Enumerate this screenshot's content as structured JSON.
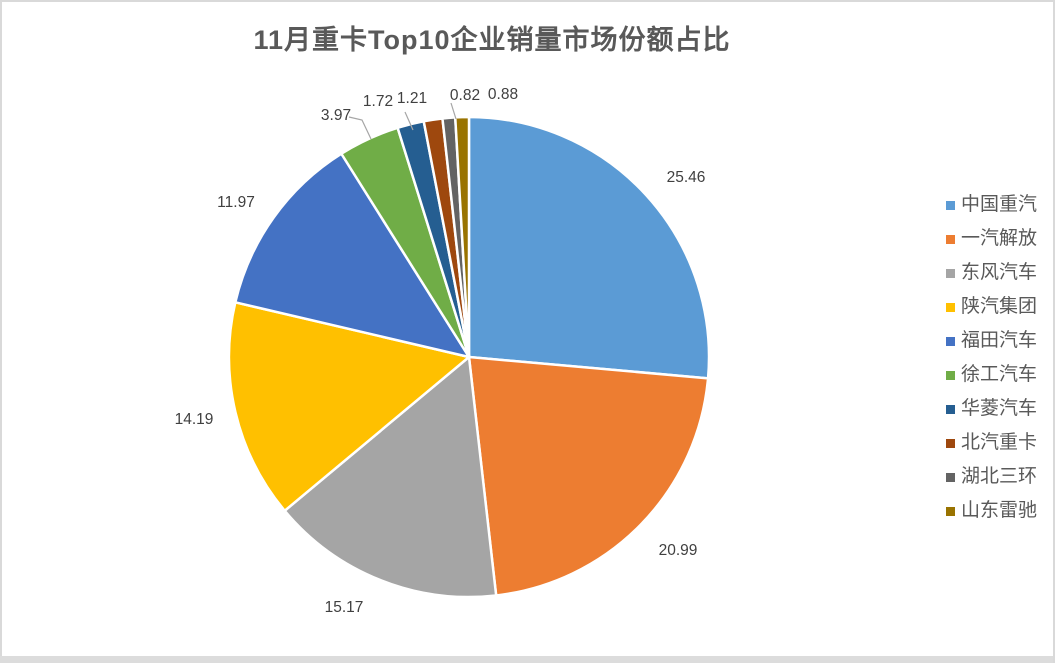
{
  "chart_data": {
    "type": "pie",
    "title": "11月重卡Top10企业销量市场份额占比",
    "legend_position": "right",
    "start_angle_deg": 0,
    "direction": "clockwise",
    "value_meaning": "market share (%)",
    "series": [
      {
        "name": "中国重汽",
        "value": 25.46,
        "label": "25.46",
        "color": "#5B9BD5"
      },
      {
        "name": "一汽解放",
        "value": 20.99,
        "label": "20.99",
        "color": "#ED7D31"
      },
      {
        "name": "东风汽车",
        "value": 15.17,
        "label": "15.17",
        "color": "#A5A5A5"
      },
      {
        "name": "陕汽集团",
        "value": 14.19,
        "label": "14.19",
        "color": "#FFC000"
      },
      {
        "name": "福田汽车",
        "value": 11.97,
        "label": "11.97",
        "color": "#4472C4"
      },
      {
        "name": "徐工汽车",
        "value": 3.97,
        "label": "3.97",
        "color": "#70AD47"
      },
      {
        "name": "华菱汽车",
        "value": 1.72,
        "label": "1.72",
        "color": "#255E91"
      },
      {
        "name": "北汽重卡",
        "value": 1.21,
        "label": "1.21",
        "color": "#9E480E"
      },
      {
        "name": "湖北三环",
        "value": 0.82,
        "label": "0.82",
        "color": "#636363"
      },
      {
        "name": "山东雷驰",
        "value": 0.88,
        "label": "0.88",
        "color": "#997300"
      }
    ]
  },
  "colors": {
    "background": "#FFFFFF",
    "title_text": "#595959",
    "data_label_text": "#404040",
    "legend_text": "#595959",
    "leader_line": "#A6A6A6",
    "frame_border": "#D9D9D9",
    "slice_separator": "#FFFFFF"
  }
}
